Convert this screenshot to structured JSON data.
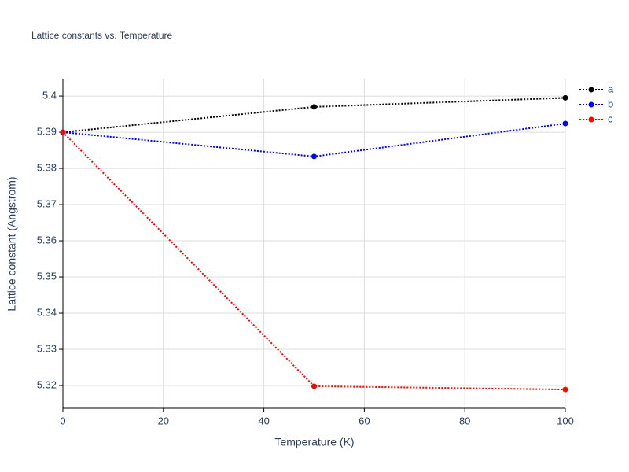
{
  "chart_data": {
    "type": "line",
    "title": "Lattice constants vs. Temperature",
    "x_label": "Temperature (K)",
    "y_label": "Lattice constant (Angstrom)",
    "x": [
      0,
      50,
      100
    ],
    "series": [
      {
        "name": "a",
        "color": "#000000",
        "values": [
          5.39,
          5.397,
          5.3995
        ]
      },
      {
        "name": "b",
        "color": "#0000ff",
        "values": [
          5.39,
          5.3833,
          5.3924
        ]
      },
      {
        "name": "c",
        "color": "#ff0000",
        "values": [
          5.39,
          5.3198,
          5.3189
        ]
      }
    ],
    "xlim": [
      0,
      100
    ],
    "xticks": [
      0,
      20,
      40,
      60,
      80,
      100
    ],
    "ylim": [
      5.3137,
      5.4048
    ],
    "yticks": [
      5.32,
      5.33,
      5.34,
      5.35,
      5.36,
      5.37,
      5.38,
      5.39,
      5.4
    ],
    "grid": true,
    "legend": "right"
  }
}
